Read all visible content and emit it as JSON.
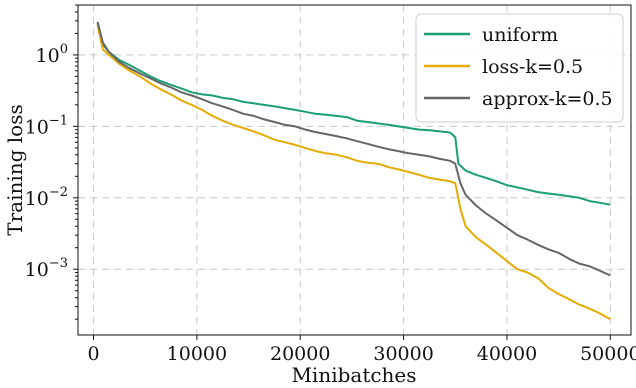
{
  "chart_data": {
    "type": "line",
    "xlabel": "Minibatches",
    "ylabel": "Training loss",
    "xlim": [
      -1500,
      52000
    ],
    "ylim": [
      0.00012,
      5.0
    ],
    "yscale": "log",
    "grid": true,
    "legend_position": "top-right",
    "x_ticks": [
      0,
      10000,
      20000,
      30000,
      40000,
      50000
    ],
    "x_tick_labels": [
      "0",
      "10000",
      "20000",
      "30000",
      "40000",
      "50000"
    ],
    "y_ticks": [
      0.001,
      0.01,
      0.1,
      1
    ],
    "y_tick_labels": [
      {
        "base": "10",
        "exp": "−3"
      },
      {
        "base": "10",
        "exp": "−2"
      },
      {
        "base": "10",
        "exp": "−1"
      },
      {
        "base": "10",
        "exp": "0"
      }
    ],
    "series": [
      {
        "name": "uniform",
        "color": "#1b9e77",
        "points": [
          [
            400,
            2.8
          ],
          [
            900,
            1.4
          ],
          [
            1500,
            1.1
          ],
          [
            2500,
            0.85
          ],
          [
            3500,
            0.72
          ],
          [
            4500,
            0.6
          ],
          [
            5500,
            0.5
          ],
          [
            6500,
            0.43
          ],
          [
            7500,
            0.38
          ],
          [
            8500,
            0.34
          ],
          [
            9500,
            0.3
          ],
          [
            10500,
            0.28
          ],
          [
            11500,
            0.27
          ],
          [
            12500,
            0.25
          ],
          [
            13500,
            0.24
          ],
          [
            14500,
            0.22
          ],
          [
            15500,
            0.21
          ],
          [
            16500,
            0.2
          ],
          [
            17500,
            0.19
          ],
          [
            18500,
            0.18
          ],
          [
            19500,
            0.17
          ],
          [
            20500,
            0.16
          ],
          [
            21500,
            0.15
          ],
          [
            22500,
            0.145
          ],
          [
            23500,
            0.14
          ],
          [
            24500,
            0.135
          ],
          [
            25500,
            0.12
          ],
          [
            26500,
            0.115
          ],
          [
            27500,
            0.11
          ],
          [
            28500,
            0.105
          ],
          [
            29500,
            0.1
          ],
          [
            30500,
            0.095
          ],
          [
            31500,
            0.09
          ],
          [
            32500,
            0.088
          ],
          [
            33500,
            0.085
          ],
          [
            34500,
            0.082
          ],
          [
            35000,
            0.07
          ],
          [
            35300,
            0.03
          ],
          [
            36000,
            0.024
          ],
          [
            37000,
            0.021
          ],
          [
            38000,
            0.019
          ],
          [
            39000,
            0.017
          ],
          [
            40000,
            0.015
          ],
          [
            41000,
            0.014
          ],
          [
            42000,
            0.013
          ],
          [
            43000,
            0.012
          ],
          [
            44000,
            0.0115
          ],
          [
            45000,
            0.011
          ],
          [
            46000,
            0.0105
          ],
          [
            47000,
            0.01
          ],
          [
            48000,
            0.009
          ],
          [
            49000,
            0.0085
          ],
          [
            50000,
            0.008
          ]
        ]
      },
      {
        "name": "loss-k=0.5",
        "color": "#e6ab02",
        "points": [
          [
            400,
            2.6
          ],
          [
            900,
            1.2
          ],
          [
            1500,
            1.0
          ],
          [
            2500,
            0.75
          ],
          [
            3500,
            0.6
          ],
          [
            4500,
            0.5
          ],
          [
            5500,
            0.4
          ],
          [
            6500,
            0.33
          ],
          [
            7500,
            0.28
          ],
          [
            8500,
            0.23
          ],
          [
            9500,
            0.2
          ],
          [
            10500,
            0.17
          ],
          [
            11500,
            0.14
          ],
          [
            12500,
            0.12
          ],
          [
            13500,
            0.105
          ],
          [
            14500,
            0.095
          ],
          [
            15500,
            0.085
          ],
          [
            16500,
            0.075
          ],
          [
            17500,
            0.065
          ],
          [
            18500,
            0.06
          ],
          [
            19500,
            0.055
          ],
          [
            20500,
            0.05
          ],
          [
            21500,
            0.045
          ],
          [
            22500,
            0.042
          ],
          [
            23500,
            0.04
          ],
          [
            24500,
            0.037
          ],
          [
            25500,
            0.033
          ],
          [
            26500,
            0.031
          ],
          [
            27500,
            0.03
          ],
          [
            28500,
            0.027
          ],
          [
            29500,
            0.025
          ],
          [
            30500,
            0.023
          ],
          [
            31500,
            0.021
          ],
          [
            32500,
            0.019
          ],
          [
            33500,
            0.018
          ],
          [
            34500,
            0.017
          ],
          [
            35000,
            0.016
          ],
          [
            35500,
            0.007
          ],
          [
            36000,
            0.004
          ],
          [
            37000,
            0.0028
          ],
          [
            38000,
            0.0022
          ],
          [
            39000,
            0.0017
          ],
          [
            40000,
            0.0013
          ],
          [
            41000,
            0.001
          ],
          [
            42000,
            0.0009
          ],
          [
            43000,
            0.00075
          ],
          [
            44000,
            0.00055
          ],
          [
            45000,
            0.00045
          ],
          [
            46000,
            0.00038
          ],
          [
            47000,
            0.00032
          ],
          [
            48000,
            0.00028
          ],
          [
            49000,
            0.00024
          ],
          [
            50000,
            0.0002
          ]
        ]
      },
      {
        "name": "approx-k=0.5",
        "color": "#666666",
        "points": [
          [
            400,
            2.9
          ],
          [
            900,
            1.5
          ],
          [
            1500,
            1.1
          ],
          [
            2500,
            0.8
          ],
          [
            3500,
            0.65
          ],
          [
            4500,
            0.55
          ],
          [
            5500,
            0.47
          ],
          [
            6500,
            0.4
          ],
          [
            7500,
            0.35
          ],
          [
            8500,
            0.3
          ],
          [
            9500,
            0.27
          ],
          [
            10500,
            0.24
          ],
          [
            11500,
            0.21
          ],
          [
            12500,
            0.19
          ],
          [
            13500,
            0.17
          ],
          [
            14500,
            0.15
          ],
          [
            15500,
            0.14
          ],
          [
            16500,
            0.125
          ],
          [
            17500,
            0.115
          ],
          [
            18500,
            0.105
          ],
          [
            19500,
            0.1
          ],
          [
            20500,
            0.09
          ],
          [
            21500,
            0.083
          ],
          [
            22500,
            0.078
          ],
          [
            23500,
            0.073
          ],
          [
            24500,
            0.068
          ],
          [
            25500,
            0.062
          ],
          [
            26500,
            0.057
          ],
          [
            27500,
            0.052
          ],
          [
            28500,
            0.048
          ],
          [
            29500,
            0.045
          ],
          [
            30500,
            0.042
          ],
          [
            31500,
            0.04
          ],
          [
            32500,
            0.038
          ],
          [
            33500,
            0.035
          ],
          [
            34500,
            0.033
          ],
          [
            35000,
            0.03
          ],
          [
            35500,
            0.016
          ],
          [
            36000,
            0.011
          ],
          [
            37000,
            0.0078
          ],
          [
            38000,
            0.006
          ],
          [
            39000,
            0.0048
          ],
          [
            40000,
            0.0038
          ],
          [
            41000,
            0.003
          ],
          [
            42000,
            0.0026
          ],
          [
            43000,
            0.0022
          ],
          [
            44000,
            0.0019
          ],
          [
            45000,
            0.0017
          ],
          [
            46000,
            0.0014
          ],
          [
            47000,
            0.0012
          ],
          [
            48000,
            0.0011
          ],
          [
            49000,
            0.00095
          ],
          [
            50000,
            0.00082
          ]
        ]
      }
    ]
  }
}
